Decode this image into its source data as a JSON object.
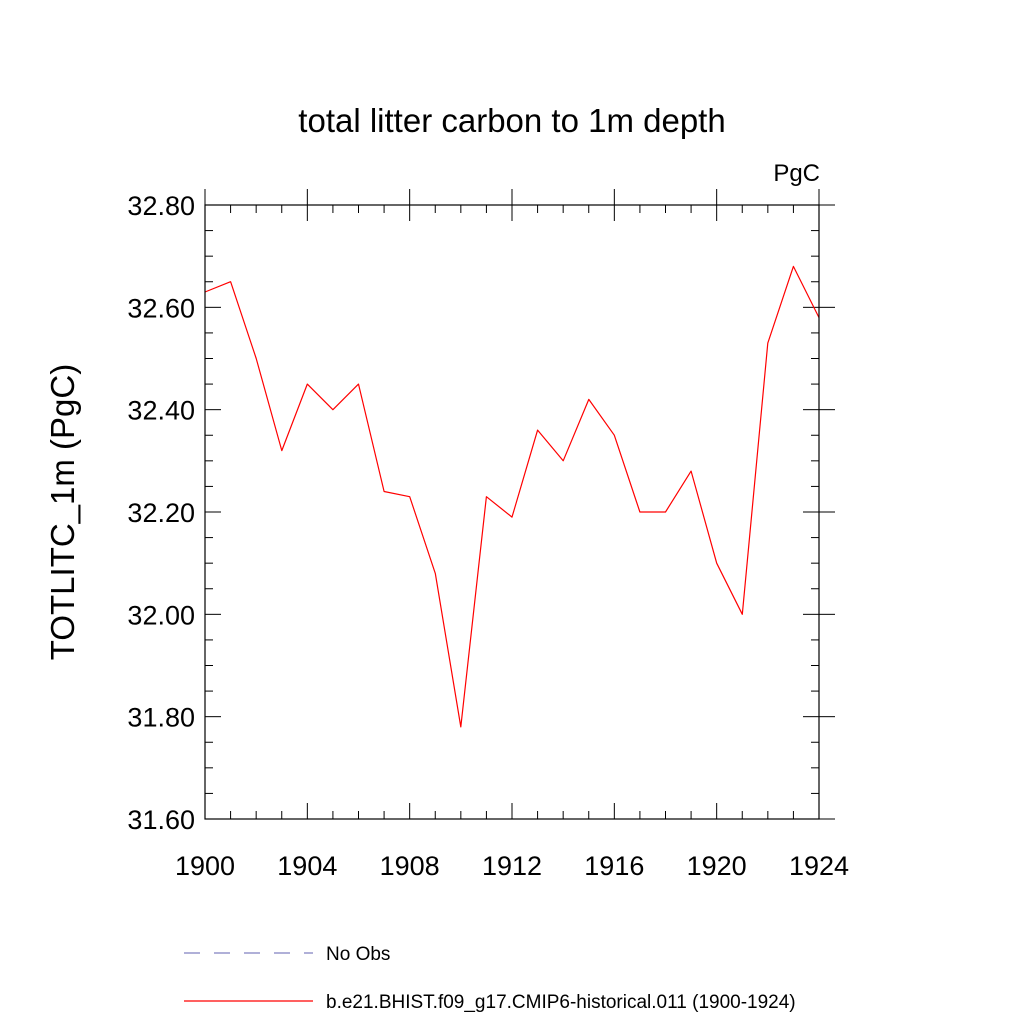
{
  "chart_data": {
    "type": "line",
    "title": "total litter carbon to 1m depth",
    "units_label": "PgC",
    "ylabel": "TOTLITC_1m  (PgC)",
    "xlabel": "",
    "xlim": [
      1900,
      1924
    ],
    "ylim": [
      31.6,
      32.8
    ],
    "x_ticks": [
      1900,
      1904,
      1908,
      1912,
      1916,
      1920,
      1924
    ],
    "x_tick_labels": [
      "1900",
      "1904",
      "1908",
      "1912",
      "1916",
      "1920",
      "1924"
    ],
    "y_ticks": [
      31.6,
      31.8,
      32.0,
      32.2,
      32.4,
      32.6,
      32.8
    ],
    "y_tick_labels": [
      "31.60",
      "31.80",
      "32.00",
      "32.20",
      "32.40",
      "32.60",
      "32.80"
    ],
    "grid": false,
    "legend_position": "bottom",
    "x": [
      1900,
      1901,
      1902,
      1903,
      1904,
      1905,
      1906,
      1907,
      1908,
      1909,
      1910,
      1911,
      1912,
      1913,
      1914,
      1915,
      1916,
      1917,
      1918,
      1919,
      1920,
      1921,
      1922,
      1923,
      1924
    ],
    "series": [
      {
        "name": "b.e21.BHIST.f09_g17.CMIP6-historical.011 (1900-1924)",
        "color": "#ff0000",
        "dash": "solid",
        "values": [
          32.63,
          32.65,
          32.5,
          32.32,
          32.45,
          32.4,
          32.45,
          32.24,
          32.23,
          32.08,
          31.78,
          32.23,
          32.19,
          32.36,
          32.3,
          32.42,
          32.35,
          32.2,
          32.2,
          32.28,
          32.1,
          32.0,
          32.53,
          32.68,
          32.58
        ]
      }
    ],
    "legend": [
      {
        "name": "No Obs",
        "color": "#8080c0",
        "dash": "dashed"
      },
      {
        "name": "b.e21.BHIST.f09_g17.CMIP6-historical.011 (1900-1924)",
        "color": "#ff0000",
        "dash": "solid"
      }
    ]
  }
}
